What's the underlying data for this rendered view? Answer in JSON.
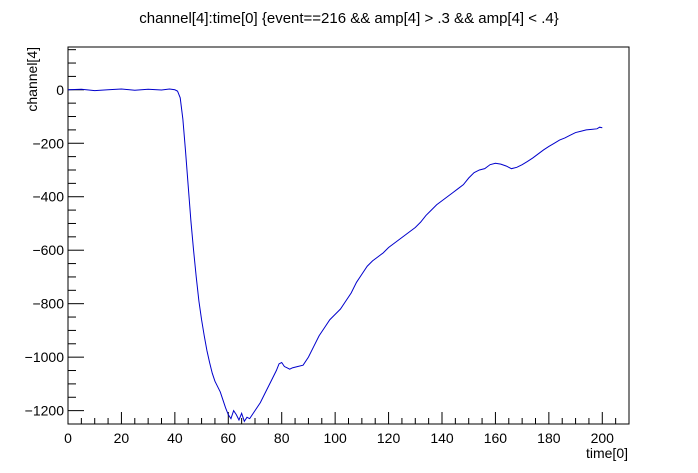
{
  "chart_data": {
    "type": "line",
    "title": "channel[4]:time[0] {event==216 && amp[4] > .3 && amp[4] < .4}",
    "xlabel": "time[0]",
    "ylabel": "channel[4]",
    "xlim": [
      0,
      210
    ],
    "ylim": [
      -1250,
      160
    ],
    "x_ticks": [
      0,
      20,
      40,
      60,
      80,
      100,
      120,
      140,
      160,
      180,
      200
    ],
    "x_tick_labels": [
      "0",
      "20",
      "40",
      "60",
      "80",
      "100",
      "120",
      "140",
      "160",
      "180",
      "200"
    ],
    "y_ticks": [
      0,
      -200,
      -400,
      -600,
      -800,
      -1000,
      -1200
    ],
    "y_tick_labels": [
      "0",
      "−200",
      "−400",
      "−600",
      "−800",
      "−1000",
      "−1200"
    ],
    "grid": false,
    "line_color": "#0000cc",
    "series": [
      {
        "x": [
          0,
          5,
          10,
          15,
          20,
          25,
          30,
          35,
          38,
          40,
          41,
          42,
          43,
          44,
          45,
          46,
          47,
          48,
          49,
          50,
          51,
          52,
          53,
          54,
          55,
          56,
          57,
          58,
          59,
          60,
          61,
          62,
          63,
          64,
          65,
          66,
          67,
          68,
          69,
          70,
          72,
          74,
          76,
          78,
          79,
          80,
          81,
          82,
          83,
          84,
          86,
          88,
          90,
          92,
          94,
          96,
          98,
          100,
          102,
          104,
          106,
          108,
          110,
          112,
          114,
          116,
          118,
          120,
          122,
          124,
          126,
          128,
          130,
          132,
          134,
          136,
          138,
          140,
          142,
          144,
          146,
          148,
          150,
          152,
          154,
          156,
          158,
          160,
          162,
          164,
          166,
          168,
          170,
          172,
          174,
          176,
          178,
          180,
          182,
          184,
          186,
          188,
          190,
          192,
          194,
          196,
          198,
          199,
          200
        ],
        "y": [
          0,
          2,
          -3,
          0,
          3,
          -2,
          2,
          -1,
          3,
          0,
          -5,
          -30,
          -110,
          -230,
          -360,
          -490,
          -600,
          -700,
          -790,
          -860,
          -920,
          -975,
          -1020,
          -1060,
          -1090,
          -1110,
          -1130,
          -1160,
          -1190,
          -1215,
          -1230,
          -1200,
          -1215,
          -1235,
          -1210,
          -1240,
          -1225,
          -1230,
          -1215,
          -1200,
          -1170,
          -1130,
          -1090,
          -1050,
          -1025,
          -1020,
          -1035,
          -1040,
          -1045,
          -1040,
          -1035,
          -1030,
          -1000,
          -960,
          -920,
          -890,
          -860,
          -840,
          -820,
          -790,
          -760,
          -720,
          -690,
          -660,
          -640,
          -625,
          -610,
          -590,
          -575,
          -560,
          -545,
          -530,
          -515,
          -495,
          -470,
          -450,
          -430,
          -415,
          -400,
          -385,
          -370,
          -355,
          -330,
          -310,
          -300,
          -295,
          -280,
          -275,
          -278,
          -285,
          -295,
          -290,
          -280,
          -268,
          -255,
          -240,
          -225,
          -212,
          -200,
          -188,
          -180,
          -170,
          -160,
          -155,
          -150,
          -148,
          -146,
          -140,
          -142
        ]
      }
    ]
  }
}
